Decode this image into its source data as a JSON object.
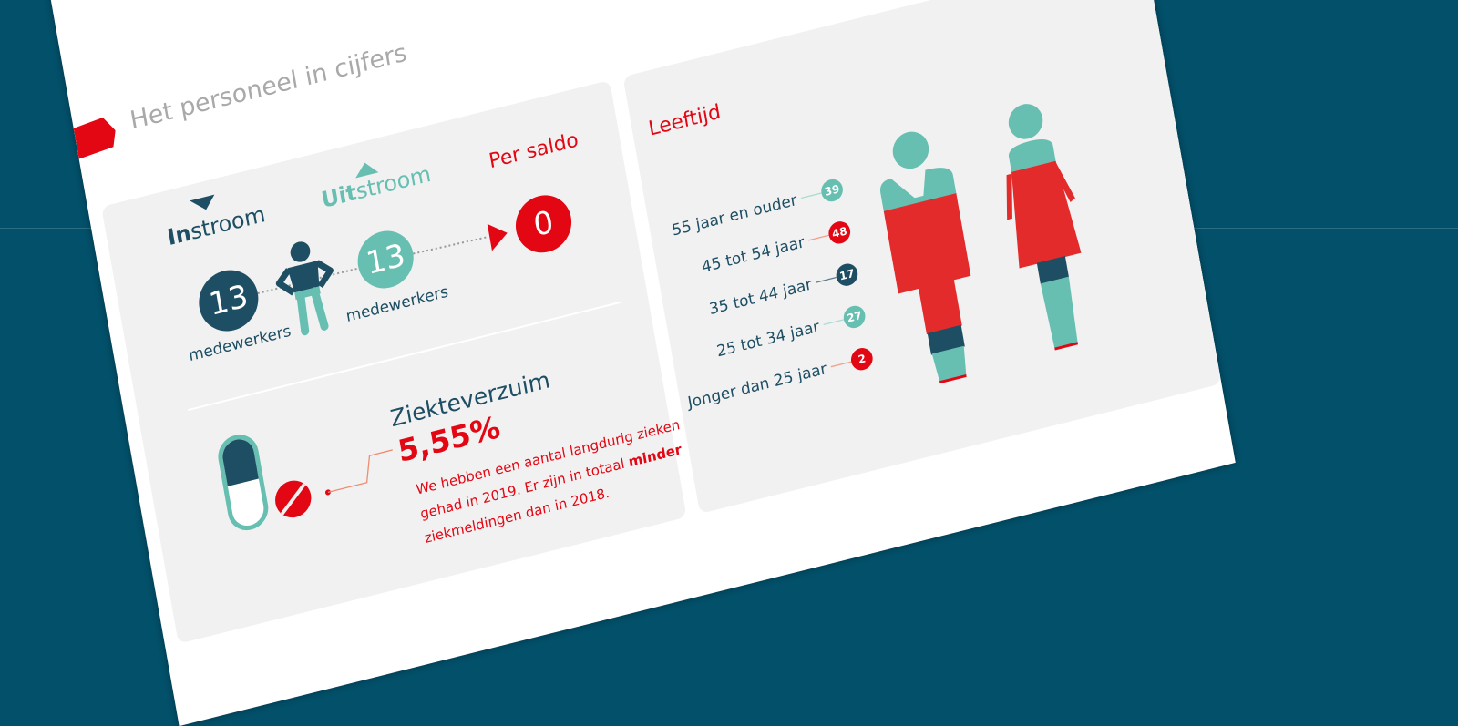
{
  "colors": {
    "background": "#03506a",
    "dark": "#1d4e63",
    "teal": "#66bfb0",
    "red": "#e30613",
    "panel": "#f1f1f1"
  },
  "heading": "Het personeel in cijfers",
  "flow": {
    "instroom": {
      "bold": "In",
      "rest": "stroom",
      "value": "13",
      "unit": "medewerkers"
    },
    "uitstroom": {
      "bold": "Uit",
      "rest": "stroom",
      "value": "13",
      "unit": "medewerkers"
    },
    "saldo": {
      "label": "Per saldo",
      "value": "0"
    }
  },
  "ziekteverzuim": {
    "title": "Ziekteverzuim",
    "value": "5,55%",
    "line1": "We hebben een aantal langdurig zieken",
    "line2_pre": "gehad in 2019. Er zijn in totaal ",
    "line2_bold": "minder",
    "line3": "ziekmeldingen dan in 2018."
  },
  "leeftijd": {
    "title": "Leeftijd",
    "groups": [
      {
        "label": "55 jaar en ouder",
        "value": "39",
        "color": "#66bfb0"
      },
      {
        "label": "45 tot 54 jaar",
        "value": "48",
        "color": "#e30613"
      },
      {
        "label": "35 tot 44 jaar",
        "value": "17",
        "color": "#1d4e63"
      },
      {
        "label": "25 tot 34 jaar",
        "value": "27",
        "color": "#66bfb0"
      },
      {
        "label": "Jonger dan 25 jaar",
        "value": "2",
        "color": "#e30613"
      }
    ]
  }
}
